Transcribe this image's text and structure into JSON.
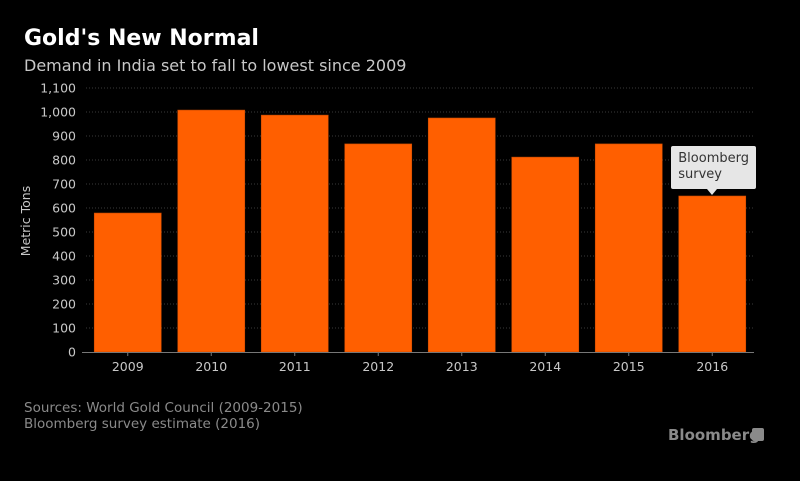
{
  "header": {
    "title": "Gold's New Normal",
    "subtitle": "Demand in India set to fall to lowest since 2009"
  },
  "footer": {
    "source_line1": "Sources: World Gold Council (2009-2015)",
    "source_line2": "Bloomberg survey estimate (2016)",
    "brand": "Bloomberg"
  },
  "colors": {
    "bar": "#ff5f00",
    "background": "#000000",
    "grid": "#3a3a3a",
    "tick_text": "#c8c8c8"
  },
  "chart_data": {
    "type": "bar",
    "title": "Gold's New Normal",
    "subtitle": "Demand in India set to fall to lowest since 2009",
    "xlabel": "",
    "ylabel": "Metric Tons",
    "categories": [
      "2009",
      "2010",
      "2011",
      "2012",
      "2013",
      "2014",
      "2015",
      "2016"
    ],
    "values": [
      579,
      1008,
      987,
      867,
      975,
      812,
      867,
      650
    ],
    "ylim": [
      0,
      1100
    ],
    "yticks": [
      0,
      100,
      200,
      300,
      400,
      500,
      600,
      700,
      800,
      900,
      1000,
      1100
    ],
    "ytick_labels": [
      "0",
      "100",
      "200",
      "300",
      "400",
      "500",
      "600",
      "700",
      "800",
      "900",
      "1,000",
      "1,100"
    ],
    "grid": true,
    "annotation": {
      "category": "2016",
      "text_line1": "Bloomberg",
      "text_line2": "survey"
    }
  }
}
